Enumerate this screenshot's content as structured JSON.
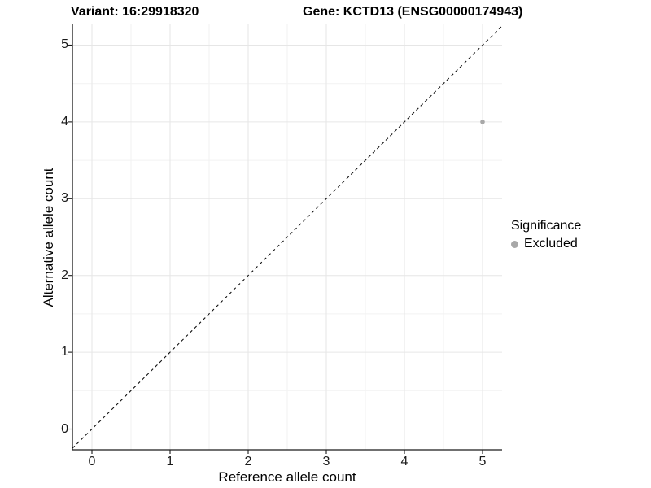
{
  "titles": {
    "variant": "Variant: 16:29918320",
    "gene": "Gene: KCTD13 (ENSG00000174943)"
  },
  "axes": {
    "x_label": "Reference allele count",
    "y_label": "Alternative allele count"
  },
  "legend": {
    "title": "Significance",
    "items": [
      {
        "label": "Excluded",
        "color": "#a8a8a8"
      }
    ]
  },
  "colors": {
    "background": "#ffffff",
    "grid_major": "#e6e6e6",
    "grid_minor": "#f2f2f2",
    "axis_line": "#1a1a1a",
    "tick_mark": "#1a1a1a",
    "reference_line": "#111111",
    "point": "#a8a8a8"
  },
  "chart_data": {
    "type": "scatter",
    "title": "Variant: 16:29918320  |  Gene: KCTD13 (ENSG00000174943)",
    "xlabel": "Reference allele count",
    "ylabel": "Alternative allele count",
    "xlim": [
      -0.25,
      5.25
    ],
    "ylim": [
      -0.27,
      5.27
    ],
    "xticks": [
      0,
      1,
      2,
      3,
      4,
      5
    ],
    "yticks": [
      0,
      1,
      2,
      3,
      4,
      5
    ],
    "minor_ticks_x": [
      0.5,
      1.5,
      2.5,
      3.5,
      4.5
    ],
    "minor_ticks_y": [
      0.5,
      1.5,
      2.5,
      3.5,
      4.5
    ],
    "grid": true,
    "legend_position": "right",
    "series": [
      {
        "name": "Excluded",
        "color": "#a8a8a8",
        "point_radius": 2.8,
        "points": [
          {
            "x": 5,
            "y": 4
          }
        ]
      }
    ],
    "reference_line": {
      "type": "identity",
      "slope": 1,
      "intercept": 0,
      "style": "dashed"
    }
  }
}
